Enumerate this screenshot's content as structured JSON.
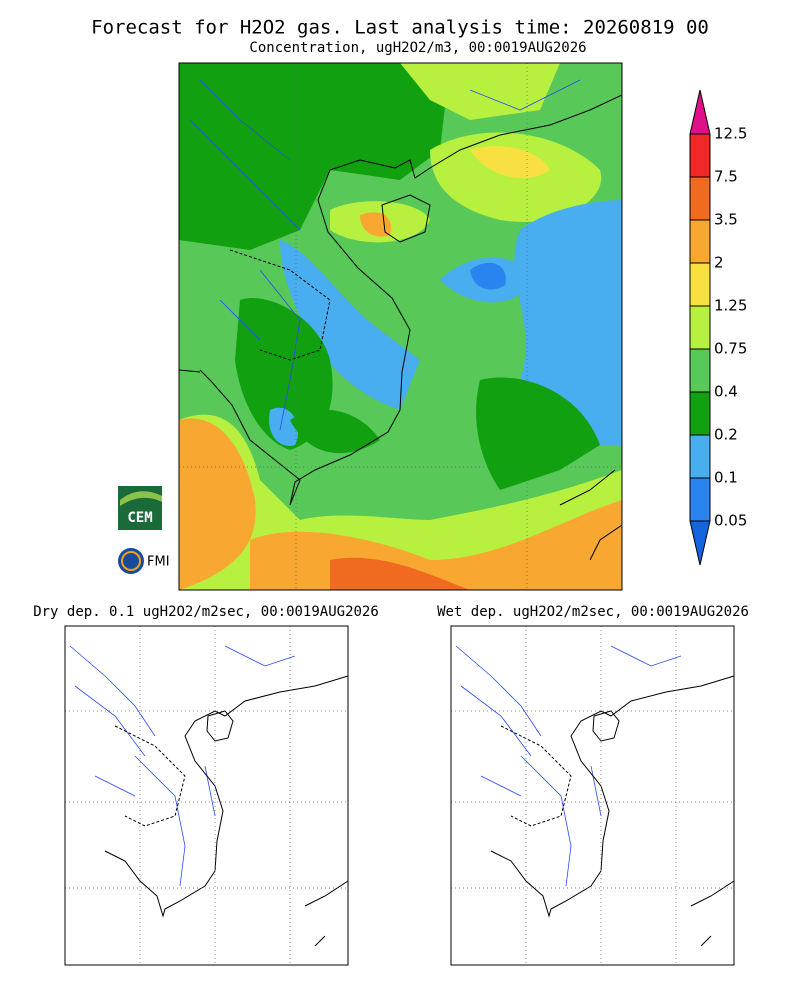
{
  "header": {
    "title": "Forecast for H2O2 gas. Last analysis time: 20260819 00",
    "subtitle": "Concentration, ugH2O2/m3, 00:0019AUG2026"
  },
  "colorbar": {
    "labels": [
      12.5,
      7.5,
      3.5,
      2,
      1.25,
      0.75,
      0.4,
      0.2,
      0.1,
      0.05
    ],
    "colors": [
      "#e0108a",
      "#f02828",
      "#f06a20",
      "#f8a830",
      "#f8e040",
      "#b8f040",
      "#58c858",
      "#10a010",
      "#48aef0",
      "#2a84f0",
      "#1464e0"
    ]
  },
  "panels": [
    {
      "title": "Dry dep. 0.1 ugH2O2/m2sec, 00:0019AUG2026"
    },
    {
      "title": "Wet dep. ugH2O2/m2sec, 00:0019AUG2026"
    }
  ],
  "logos": [
    "CEM",
    "FMI"
  ]
}
